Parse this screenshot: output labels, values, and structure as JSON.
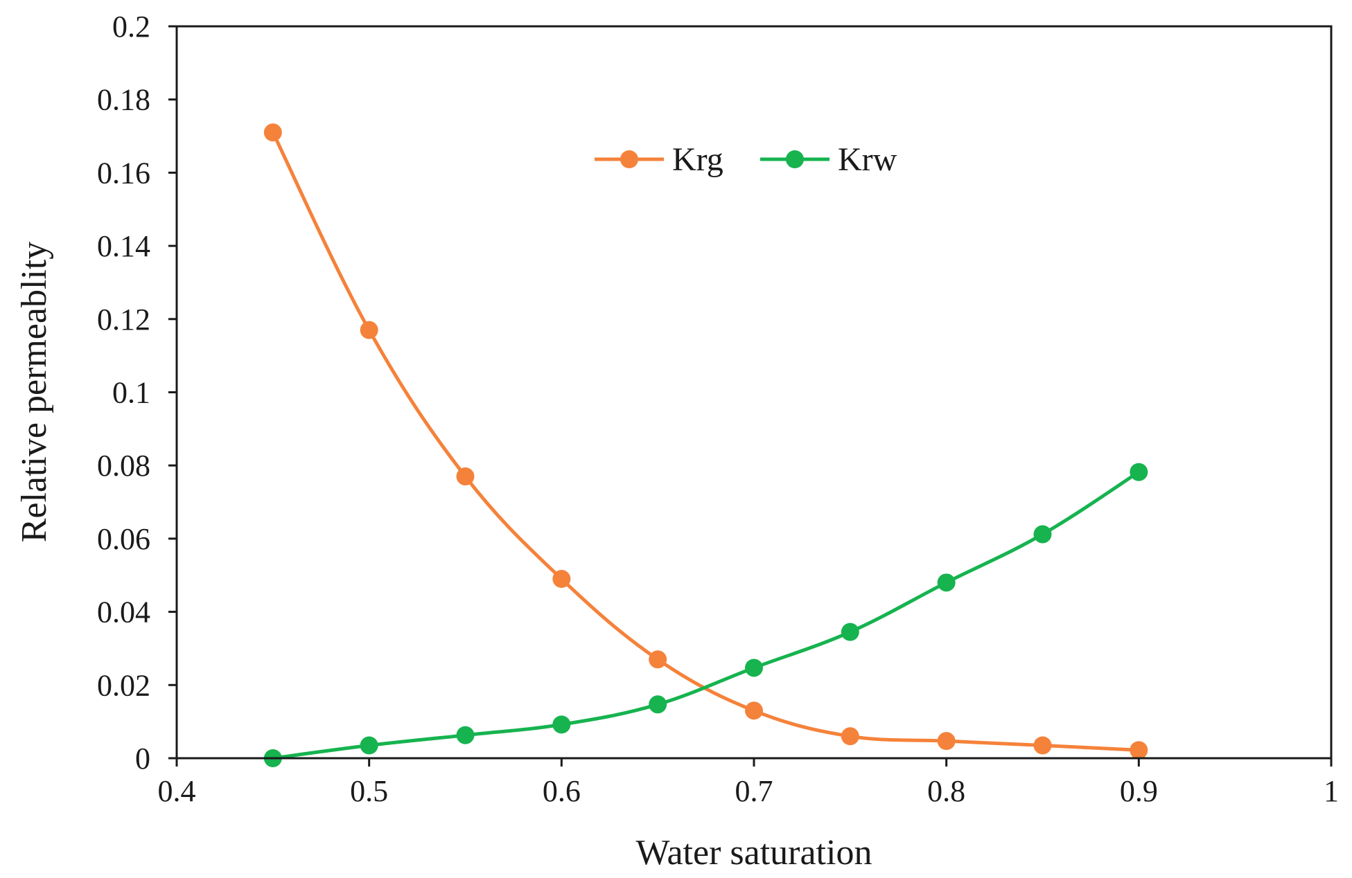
{
  "chart_data": {
    "type": "line",
    "title": "",
    "xlabel": "Water saturation",
    "ylabel": "Relative permeablity",
    "xlim": [
      0.4,
      1.0
    ],
    "ylim": [
      0,
      0.2
    ],
    "x_ticks": [
      0.4,
      0.5,
      0.6,
      0.7,
      0.8,
      0.9,
      1.0
    ],
    "x_tick_labels": [
      "0.4",
      "0.5",
      "0.6",
      "0.7",
      "0.8",
      "0.9",
      "1"
    ],
    "y_ticks": [
      0,
      0.02,
      0.04,
      0.06,
      0.08,
      0.1,
      0.12,
      0.14,
      0.16,
      0.18,
      0.2
    ],
    "y_tick_labels": [
      "0",
      "0.02",
      "0.04",
      "0.06",
      "0.08",
      "0.1",
      "0.12",
      "0.14",
      "0.16",
      "0.18",
      "0.2"
    ],
    "grid": false,
    "legend_position": "top-center",
    "smooth": true,
    "x": [
      0.45,
      0.5,
      0.55,
      0.6,
      0.65,
      0.7,
      0.75,
      0.8,
      0.85,
      0.9
    ],
    "series": [
      {
        "name": "Krg",
        "color": "#f5823a",
        "values": [
          0.171,
          0.117,
          0.077,
          0.049,
          0.027,
          0.013,
          0.006,
          0.0047,
          0.0035,
          0.0022
        ]
      },
      {
        "name": "Krw",
        "color": "#16b34f",
        "values": [
          0.0,
          0.0035,
          0.0063,
          0.0092,
          0.0147,
          0.0247,
          0.0345,
          0.048,
          0.0612,
          0.0782
        ]
      }
    ]
  }
}
